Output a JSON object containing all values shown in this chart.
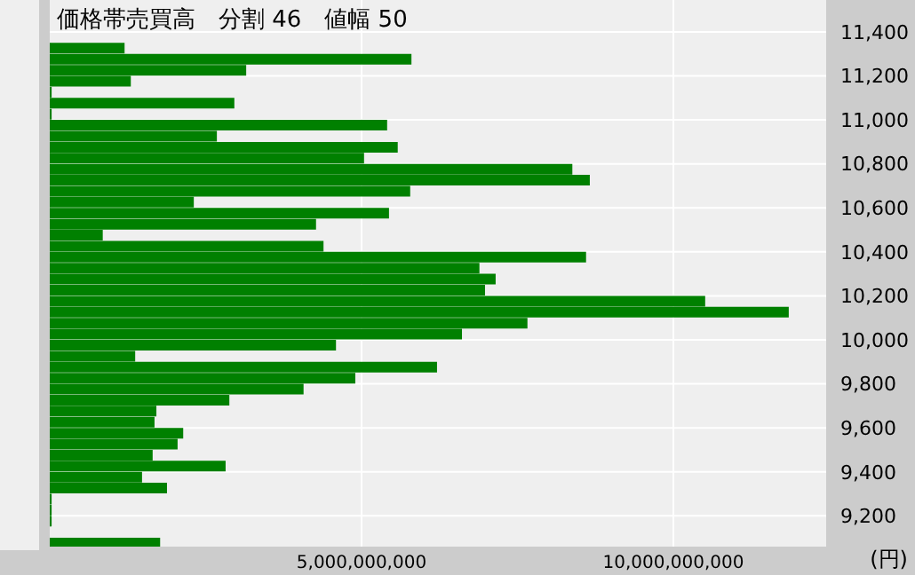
{
  "chart_data": {
    "type": "bar",
    "orientation": "horizontal",
    "title": "価格帯売買高　分割 46　値幅 50",
    "xlabel": "(円)",
    "x": [
      11325,
      11275,
      11225,
      11175,
      11125,
      11075,
      11025,
      10975,
      10925,
      10875,
      10825,
      10775,
      10725,
      10675,
      10625,
      10575,
      10525,
      10475,
      10425,
      10375,
      10325,
      10275,
      10225,
      10175,
      10125,
      10075,
      10025,
      9975,
      9925,
      9875,
      9825,
      9775,
      9725,
      9675,
      9625,
      9575,
      9525,
      9475,
      9425,
      9375,
      9325,
      9275,
      9225,
      9175,
      9125,
      9075
    ],
    "values": [
      1200000000,
      5800000000,
      3150000000,
      1300000000,
      30000000,
      2960000000,
      30000000,
      5410000000,
      2680000000,
      5580000000,
      5040000000,
      8380000000,
      8660000000,
      5780000000,
      2310000000,
      5440000000,
      4270000000,
      850000000,
      4390000000,
      8600000000,
      6890000000,
      7150000000,
      6980000000,
      10510000000,
      11850000000,
      7660000000,
      6610000000,
      4590000000,
      1370000000,
      6210000000,
      4900000000,
      4070000000,
      2880000000,
      1710000000,
      1680000000,
      2140000000,
      2050000000,
      1650000000,
      2820000000,
      1480000000,
      1880000000,
      30000000,
      30000000,
      30000000,
      0,
      1770000000
    ],
    "color": "#008000",
    "xlim": [
      0,
      12450000000
    ],
    "xticks": [
      {
        "value": 5000000000,
        "label": "5,000,000,000"
      },
      {
        "value": 10000000000,
        "label": "10,000,000,000"
      }
    ],
    "ylim": [
      9060,
      11545
    ],
    "yticks": [
      {
        "value": 9200,
        "label": "9,200"
      },
      {
        "value": 9400,
        "label": "9,400"
      },
      {
        "value": 9600,
        "label": "9,600"
      },
      {
        "value": 9800,
        "label": "9,800"
      },
      {
        "value": 10000,
        "label": "10,000"
      },
      {
        "value": 10200,
        "label": "10,200"
      },
      {
        "value": 10400,
        "label": "10,400"
      },
      {
        "value": 10600,
        "label": "10,600"
      },
      {
        "value": 10800,
        "label": "10,800"
      },
      {
        "value": 11000,
        "label": "11,000"
      },
      {
        "value": 11200,
        "label": "11,200"
      },
      {
        "value": 11400,
        "label": "11,400"
      }
    ],
    "grid": true
  }
}
